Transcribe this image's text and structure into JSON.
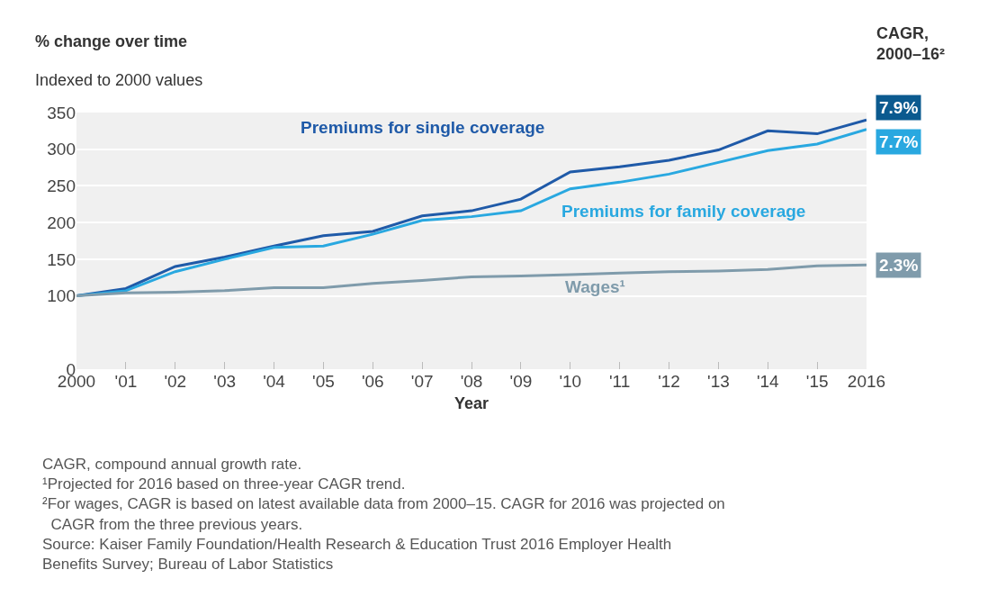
{
  "chart_data": {
    "type": "line",
    "title": "% change over time",
    "subtitle": "Indexed to 2000 values",
    "xlabel": "Year",
    "legend_title": "CAGR, 2000–16²",
    "categories": [
      "2000",
      "'01",
      "'02",
      "'03",
      "'04",
      "'05",
      "'06",
      "'07",
      "'08",
      "'09",
      "'10",
      "'11",
      "'12",
      "'13",
      "'14",
      "'15",
      "2016"
    ],
    "series": [
      {
        "name": "Premiums for single coverage",
        "color": "#1f5aa8",
        "values": [
          100,
          110,
          140,
          153,
          168,
          182,
          188,
          209,
          216,
          232,
          269,
          276,
          285,
          299,
          325,
          321,
          340
        ]
      },
      {
        "name": "Premiums for family coverage",
        "color": "#29a8e0",
        "values": [
          100,
          107,
          133,
          150,
          166,
          168,
          184,
          203,
          208,
          216,
          246,
          255,
          266,
          282,
          298,
          307,
          327
        ]
      },
      {
        "name": "Wages¹",
        "color": "#7f9bab",
        "values": [
          100,
          104,
          105,
          107,
          111,
          111,
          117,
          121,
          126,
          127,
          129,
          131,
          133,
          134,
          136,
          141,
          142
        ]
      }
    ],
    "ylim": [
      0,
      350
    ],
    "yticks": [
      0,
      100,
      150,
      200,
      250,
      300,
      350
    ],
    "grid": "y",
    "legend": false,
    "marker": "none",
    "line_style": "solid",
    "annotations": [
      {
        "text": "7.9%",
        "x": "2016",
        "y": 340
      },
      {
        "text": "7.7%",
        "x": "2016",
        "y": 327
      },
      {
        "text": "2.3%",
        "x": "2016",
        "y": 142
      },
      "CAGR, compound annual growth rate.",
      "¹Projected for 2016 based on three-year CAGR trend.",
      "²For wages, CAGR is based on latest available data from 2000–15. CAGR for 2016 was projected on CAGR from the three previous years.",
      "Source: Kaiser Family Foundation/Health Research & Education Trust 2016 Employer Health Benefits Survey; Bureau of Labor Statistics"
    ]
  }
}
